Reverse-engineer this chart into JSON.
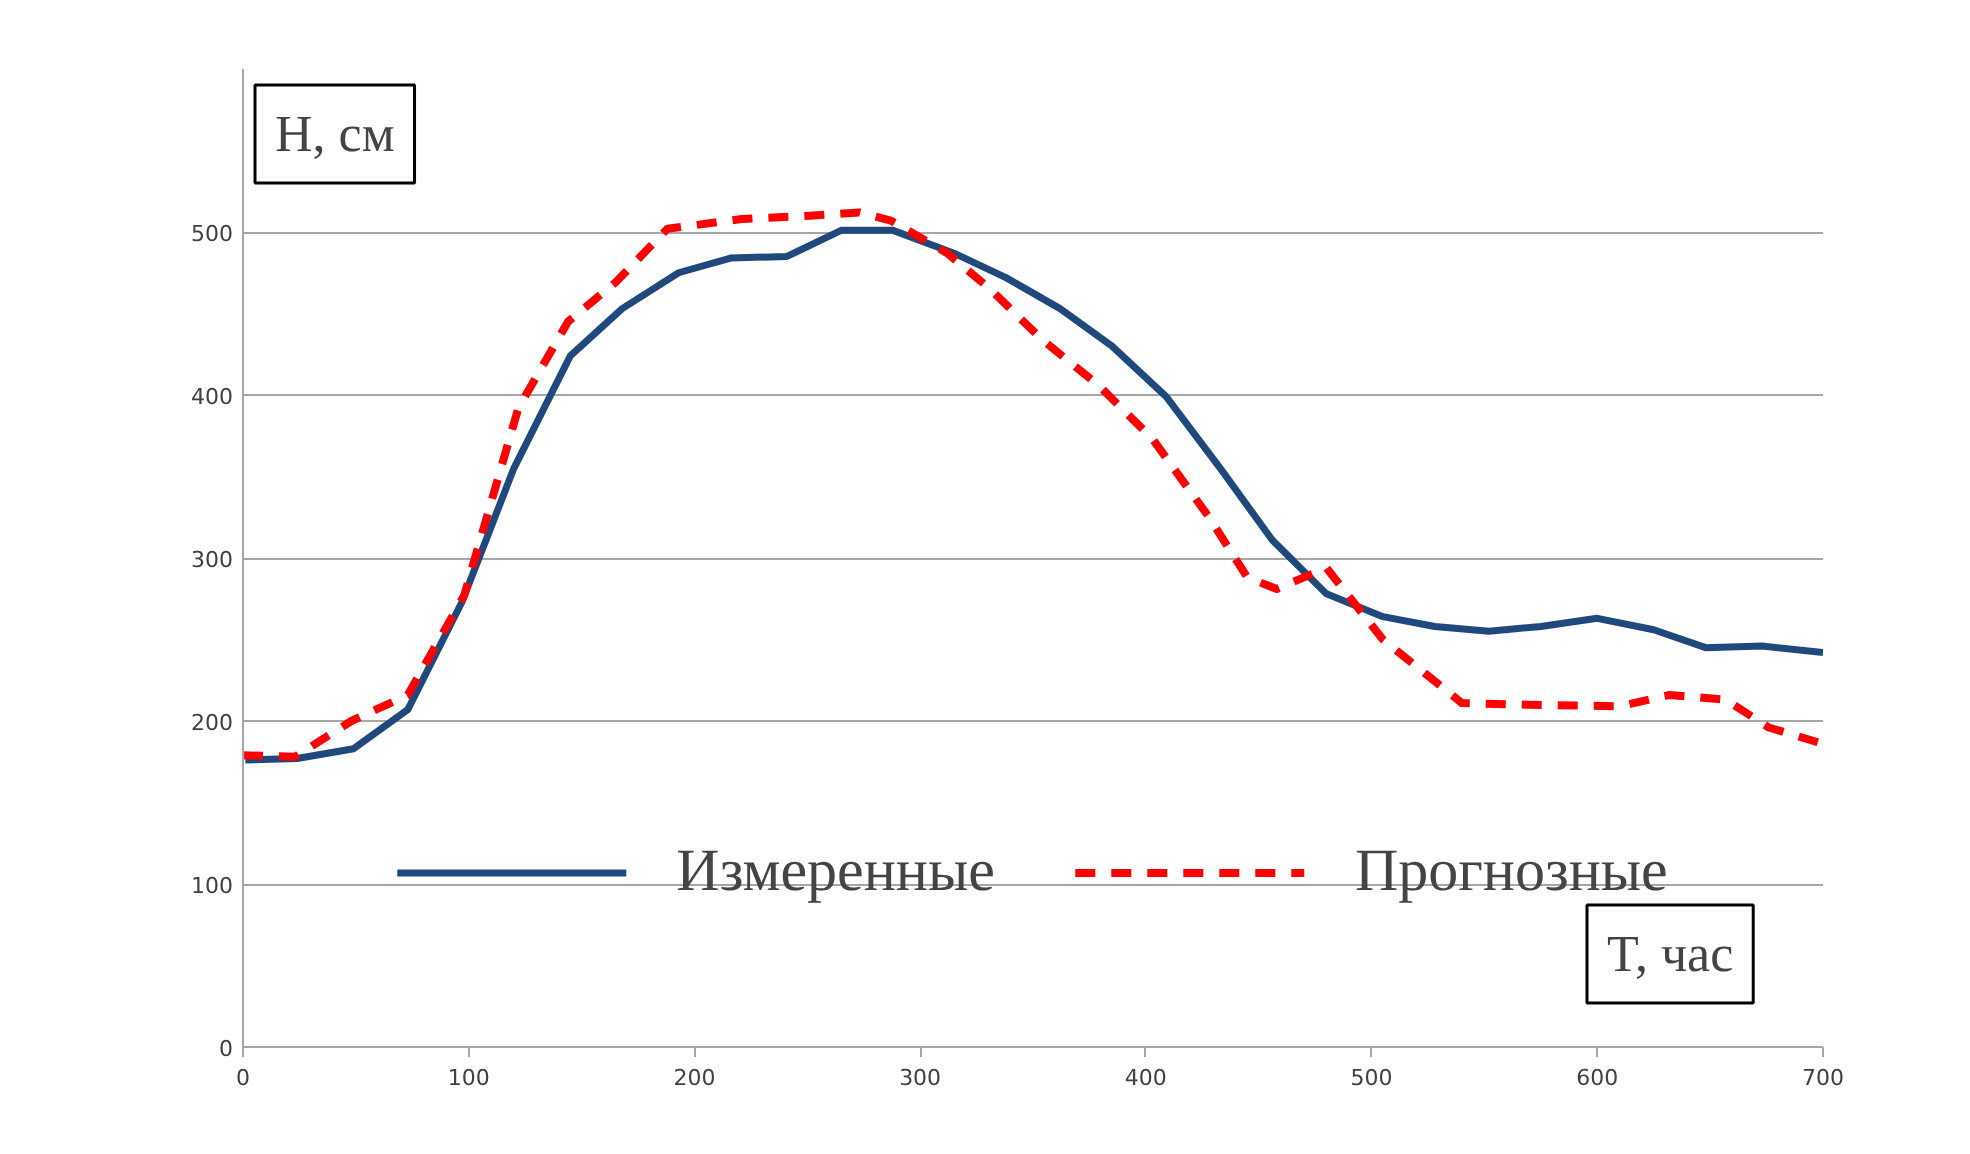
{
  "chart_data": {
    "type": "line",
    "xlabel": "T, час",
    "ylabel": "H, см",
    "xlim": [
      0,
      700
    ],
    "xticks": [
      0,
      100,
      200,
      300,
      400,
      500,
      600,
      700
    ],
    "ylim": [
      0,
      600
    ],
    "yticks": [
      0,
      100,
      200,
      300,
      400,
      500
    ],
    "grid": "y",
    "legend": "bottom",
    "series": [
      {
        "name": "Измеренные",
        "color": "#1f497d",
        "line_style": "solid",
        "x": [
          1,
          24,
          49,
          73,
          97,
          120,
          145,
          168,
          193,
          216,
          241,
          265,
          288,
          315,
          338,
          362,
          385,
          409,
          433,
          456,
          480,
          505,
          528,
          552,
          575,
          600,
          625,
          648,
          673,
          700
        ],
        "values": [
          176,
          177,
          183,
          207,
          273,
          355,
          424,
          453,
          475,
          484,
          485,
          501,
          501,
          487,
          472,
          453,
          430,
          399,
          355,
          311,
          278,
          264,
          258,
          255,
          258,
          263,
          256,
          245,
          246,
          242
        ]
      },
      {
        "name": "Прогнозные",
        "color": "#ff0000",
        "line_style": "dashed",
        "x": [
          0,
          23,
          48,
          73,
          98,
          122,
          144,
          165,
          188,
          221,
          251,
          273,
          287,
          312,
          331,
          354,
          379,
          403,
          428,
          445,
          458,
          480,
          505,
          540,
          569,
          610,
          632,
          657,
          676,
          700
        ],
        "values": [
          179,
          178,
          200,
          216,
          277,
          392,
          445,
          469,
          502,
          508,
          510,
          512,
          507,
          487,
          465,
          434,
          406,
          373,
          325,
          288,
          281,
          294,
          250,
          211,
          210,
          209,
          216,
          213,
          196,
          186
        ]
      }
    ]
  }
}
